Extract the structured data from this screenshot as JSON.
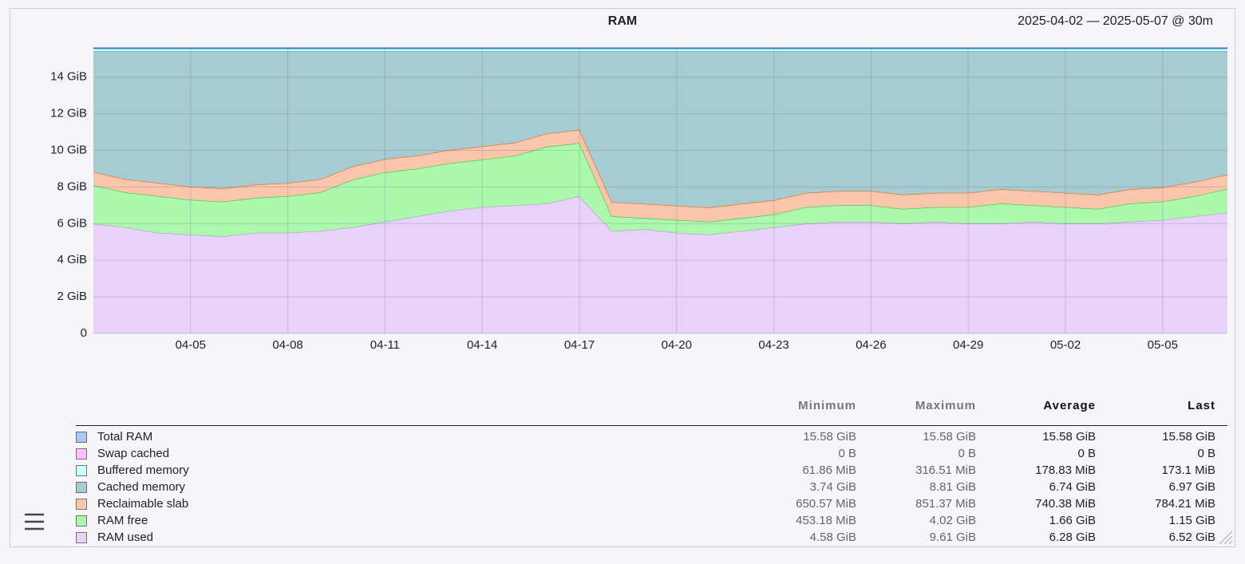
{
  "chart_data": {
    "type": "area",
    "title": "RAM",
    "subtitle": "2025-04-02 — 2025-05-07 @ 30m",
    "x": [
      "04-02",
      "04-03",
      "04-04",
      "04-05",
      "04-06",
      "04-07",
      "04-08",
      "04-09",
      "04-10",
      "04-11",
      "04-12",
      "04-13",
      "04-14",
      "04-15",
      "04-16",
      "04-17",
      "04-18",
      "04-19",
      "04-20",
      "04-21",
      "04-22",
      "04-23",
      "04-24",
      "04-25",
      "04-26",
      "04-27",
      "04-28",
      "04-29",
      "04-30",
      "05-01",
      "05-02",
      "05-03",
      "05-04",
      "05-05",
      "05-06",
      "05-07"
    ],
    "xlim": [
      "04-02",
      "05-07"
    ],
    "xticks": [
      "04-05",
      "04-08",
      "04-11",
      "04-14",
      "04-17",
      "04-20",
      "04-23",
      "04-26",
      "04-29",
      "05-02",
      "05-05"
    ],
    "ylim": [
      0,
      15.6
    ],
    "yticks": [
      0,
      {
        "value": 2,
        "label": "2 GiB"
      },
      {
        "value": 4,
        "label": "4 GiB"
      },
      {
        "value": 6,
        "label": "6 GiB"
      },
      {
        "value": 8,
        "label": "8 GiB"
      },
      {
        "value": 10,
        "label": "10 GiB"
      },
      {
        "value": 12,
        "label": "12 GiB"
      },
      {
        "value": 14,
        "label": "14 GiB"
      }
    ],
    "grid": true,
    "stats_columns": [
      "Minimum",
      "Maximum",
      "Average",
      "Last"
    ],
    "series": [
      {
        "name": "Total RAM",
        "style": "line",
        "color": "#3a78c8",
        "legend_color": "#a8c8f0",
        "values": [
          15.58,
          15.58,
          15.58,
          15.58,
          15.58,
          15.58,
          15.58,
          15.58,
          15.58,
          15.58,
          15.58,
          15.58,
          15.58,
          15.58,
          15.58,
          15.58,
          15.58,
          15.58,
          15.58,
          15.58,
          15.58,
          15.58,
          15.58,
          15.58,
          15.58,
          15.58,
          15.58,
          15.58,
          15.58,
          15.58,
          15.58,
          15.58,
          15.58,
          15.58,
          15.58,
          15.58
        ],
        "stats": [
          "15.58 GiB",
          "15.58 GiB",
          "15.58 GiB",
          "15.58 GiB"
        ]
      },
      {
        "name": "Swap cached",
        "color": "#ffc0ff",
        "line_color": "#e080e0",
        "values": [
          0,
          0,
          0,
          0,
          0,
          0,
          0,
          0,
          0,
          0,
          0,
          0,
          0,
          0,
          0,
          0,
          0,
          0,
          0,
          0,
          0,
          0,
          0,
          0,
          0,
          0,
          0,
          0,
          0,
          0,
          0,
          0,
          0,
          0,
          0,
          0
        ],
        "stats": [
          "0 B",
          "0 B",
          "0 B",
          "0 B"
        ]
      },
      {
        "name": "Buffered memory",
        "color": "#ccffff",
        "line_color": "#60c8d8",
        "values": [
          0.17,
          0.17,
          0.17,
          0.17,
          0.17,
          0.17,
          0.17,
          0.17,
          0.17,
          0.17,
          0.17,
          0.17,
          0.17,
          0.17,
          0.17,
          0.17,
          0.17,
          0.17,
          0.17,
          0.17,
          0.17,
          0.17,
          0.17,
          0.17,
          0.17,
          0.17,
          0.17,
          0.17,
          0.17,
          0.17,
          0.17,
          0.17,
          0.17,
          0.17,
          0.17,
          0.17
        ],
        "stats": [
          "61.86 MiB",
          "316.51 MiB",
          "178.83 MiB",
          "173.1 MiB"
        ]
      },
      {
        "name": "Cached memory",
        "color": "#a6ccd2",
        "line_color": "#3f9a9c",
        "values": [
          6.59,
          6.99,
          7.19,
          7.39,
          7.49,
          7.29,
          7.19,
          6.99,
          6.29,
          5.89,
          5.69,
          5.39,
          5.19,
          4.99,
          4.49,
          4.29,
          8.23,
          8.33,
          8.43,
          8.53,
          8.33,
          8.13,
          7.73,
          7.63,
          7.63,
          7.83,
          7.73,
          7.73,
          7.53,
          7.63,
          7.73,
          7.83,
          7.53,
          7.43,
          7.13,
          6.73
        ],
        "stats": [
          "3.74 GiB",
          "8.81 GiB",
          "6.74 GiB",
          "6.97 GiB"
        ]
      },
      {
        "name": "Reclaimable slab",
        "color": "#f9c6ac",
        "line_color": "#d8702c",
        "values": [
          0.72,
          0.72,
          0.72,
          0.72,
          0.72,
          0.72,
          0.72,
          0.72,
          0.72,
          0.72,
          0.72,
          0.72,
          0.72,
          0.72,
          0.72,
          0.72,
          0.78,
          0.78,
          0.78,
          0.78,
          0.78,
          0.78,
          0.78,
          0.78,
          0.78,
          0.78,
          0.78,
          0.78,
          0.78,
          0.78,
          0.78,
          0.78,
          0.78,
          0.78,
          0.78,
          0.78
        ],
        "stats": [
          "650.57 MiB",
          "851.37 MiB",
          "740.38 MiB",
          "784.21 MiB"
        ]
      },
      {
        "name": "RAM free",
        "color": "#acf8ac",
        "line_color": "#44c444",
        "values": [
          2.1,
          1.9,
          2.0,
          1.9,
          1.9,
          1.9,
          2.0,
          2.1,
          2.6,
          2.7,
          2.6,
          2.6,
          2.6,
          2.7,
          3.1,
          2.9,
          0.8,
          0.6,
          0.7,
          0.7,
          0.7,
          0.7,
          0.9,
          0.9,
          0.9,
          0.8,
          0.8,
          0.9,
          1.1,
          0.9,
          0.9,
          0.8,
          1.0,
          1.0,
          1.1,
          1.3
        ],
        "stats": [
          "453.18 MiB",
          "4.02 GiB",
          "1.66 GiB",
          "1.15 GiB"
        ]
      },
      {
        "name": "RAM used",
        "color": "#e8d2f8",
        "line_color": "#b29ad0",
        "values": [
          6.0,
          5.8,
          5.5,
          5.4,
          5.3,
          5.5,
          5.5,
          5.6,
          5.8,
          6.1,
          6.4,
          6.7,
          6.9,
          7.0,
          7.1,
          7.5,
          5.6,
          5.7,
          5.5,
          5.4,
          5.6,
          5.8,
          6.0,
          6.1,
          6.1,
          6.0,
          6.1,
          6.0,
          6.0,
          6.1,
          6.0,
          6.0,
          6.1,
          6.2,
          6.4,
          6.6
        ],
        "stats": [
          "4.58 GiB",
          "9.61 GiB",
          "6.28 GiB",
          "6.52 GiB"
        ]
      }
    ]
  }
}
